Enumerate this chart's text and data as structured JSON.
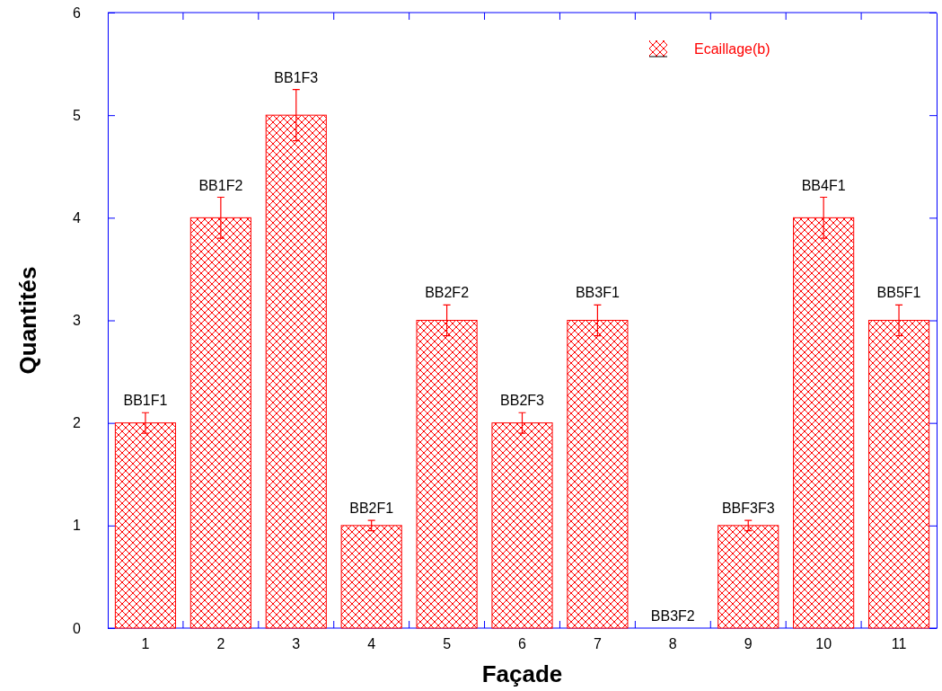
{
  "chart_data": {
    "type": "bar",
    "xlabel": "Façade",
    "ylabel": "Quantités",
    "categories": [
      "1",
      "2",
      "3",
      "4",
      "5",
      "6",
      "7",
      "8",
      "9",
      "10",
      "11"
    ],
    "series": [
      {
        "name": "Ecaillage(b)",
        "color": "#ff0000",
        "values": [
          2,
          4,
          5,
          1,
          3,
          2,
          3,
          0,
          1,
          4,
          3
        ],
        "errors": [
          0.1,
          0.2,
          0.25,
          0.05,
          0.15,
          0.1,
          0.15,
          null,
          0.05,
          0.2,
          0.15
        ]
      }
    ],
    "ylim": [
      0,
      6
    ],
    "yticks": [
      0,
      1,
      2,
      3,
      4,
      5,
      6
    ],
    "legend": "top right",
    "annotations": [
      {
        "text": "BB1F1",
        "x": "1",
        "y": 2
      },
      {
        "text": "BB1F2",
        "x": "2",
        "y": 4
      },
      {
        "text": "BB1F3",
        "x": "3",
        "y": 5
      },
      {
        "text": "BB2F1",
        "x": "4",
        "y": 1
      },
      {
        "text": "BB2F2",
        "x": "5",
        "y": 3
      },
      {
        "text": "BB2F3",
        "x": "6",
        "y": 2
      },
      {
        "text": "BB3F1",
        "x": "7",
        "y": 3
      },
      {
        "text": "BB3F2",
        "x": "8",
        "y": 0
      },
      {
        "text": "BBF3F3",
        "x": "9",
        "y": 1
      },
      {
        "text": "BB4F1",
        "x": "10",
        "y": 4
      },
      {
        "text": "BB5F1",
        "x": "11",
        "y": 3
      }
    ]
  }
}
